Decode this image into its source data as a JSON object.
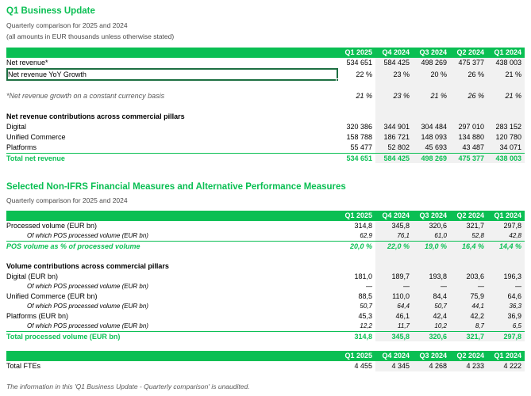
{
  "page": {
    "section1_title": "Q1 Business Update",
    "section1_subtitle": "Quarterly comparison for 2025 and 2024",
    "section1_note": "(all amounts in EUR thousands unless otherwise stated)",
    "section2_title": "Selected Non-IFRS Financial Measures and Alternative Performance Measures",
    "section2_subtitle": "Quarterly comparison for 2025 and 2024",
    "footnote": "The information in this 'Q1 Business Update - Quarterly comparison' is unaudited."
  },
  "colors": {
    "header_bar_green": "#0abf53",
    "accent_text_green": "#0abf53",
    "selection_border_green": "#1d6f42",
    "prior_quarter_column_shade": "#f1f1f1",
    "muted_text_gray": "#595959"
  },
  "columns": [
    "Q1 2025",
    "Q4 2024",
    "Q3 2024",
    "Q2 2024",
    "Q1 2024"
  ],
  "tables": [
    {
      "name": "net-revenue",
      "rows": [
        {
          "label": "Net revenue*",
          "style": "normal",
          "values": [
            "534 651",
            "584 425",
            "498 269",
            "475 377",
            "438 003"
          ]
        },
        {
          "label": "Net revenue YoY Growth",
          "style": "selected",
          "values": [
            "22 %",
            "23 %",
            "20 %",
            "26 %",
            "21 %"
          ]
        },
        {
          "style": "blank"
        },
        {
          "label": "*Net revenue growth on a constant currency basis",
          "style": "note-italic",
          "values": [
            "21 %",
            "23 %",
            "21 %",
            "26 %",
            "21 %"
          ]
        },
        {
          "style": "blank"
        },
        {
          "label": "Net revenue contributions across commercial pillars",
          "style": "bold",
          "values": []
        },
        {
          "label": "Digital",
          "style": "normal",
          "values": [
            "320 386",
            "344 901",
            "304 484",
            "297 010",
            "283 152"
          ]
        },
        {
          "label": "Unified Commerce",
          "style": "normal",
          "values": [
            "158 788",
            "186 721",
            "148 093",
            "134 880",
            "120 780"
          ]
        },
        {
          "label": "Platforms",
          "style": "normal",
          "values": [
            "55 477",
            "52 802",
            "45 693",
            "43 487",
            "34 071"
          ]
        },
        {
          "label": "Total net revenue",
          "style": "total",
          "values": [
            "534 651",
            "584 425",
            "498 269",
            "475 377",
            "438 003"
          ]
        }
      ]
    },
    {
      "name": "non-ifrs-measures",
      "rows": [
        {
          "label": "Processed volume (EUR bn)",
          "style": "normal",
          "values": [
            "314,8",
            "345,8",
            "320,6",
            "321,7",
            "297,8"
          ]
        },
        {
          "label": "Of which POS processed volume (EUR bn)",
          "style": "sub-italic",
          "values": [
            "62,9",
            "76,1",
            "61,0",
            "52,8",
            "42,8"
          ]
        },
        {
          "label": "POS volume as % of processed volume",
          "style": "total-italic",
          "values": [
            "20,0 %",
            "22,0 %",
            "19,0 %",
            "16,4 %",
            "14,4 %"
          ]
        },
        {
          "style": "blank"
        },
        {
          "label": "Volume contributions across commercial pillars",
          "style": "bold",
          "values": []
        },
        {
          "label": "Digital (EUR bn)",
          "style": "normal",
          "values": [
            "181,0",
            "189,7",
            "193,8",
            "203,6",
            "196,3"
          ]
        },
        {
          "label": "Of which POS processed volume (EUR bn)",
          "style": "sub-italic",
          "values": [
            "—",
            "—",
            "—",
            "—",
            "—"
          ]
        },
        {
          "label": "Unified Commerce (EUR bn)",
          "style": "normal",
          "values": [
            "88,5",
            "110,0",
            "84,4",
            "75,9",
            "64,6"
          ]
        },
        {
          "label": "Of which POS processed volume (EUR bn)",
          "style": "sub-italic",
          "values": [
            "50,7",
            "64,4",
            "50,7",
            "44,1",
            "36,3"
          ]
        },
        {
          "label": "Platforms (EUR bn)",
          "style": "normal",
          "values": [
            "45,3",
            "46,1",
            "42,4",
            "42,2",
            "36,9"
          ]
        },
        {
          "label": "Of which POS processed volume (EUR bn)",
          "style": "sub-italic",
          "values": [
            "12,2",
            "11,7",
            "10,2",
            "8,7",
            "6,5"
          ]
        },
        {
          "label": "Total processed volume (EUR bn)",
          "style": "total",
          "values": [
            "314,8",
            "345,8",
            "320,6",
            "321,7",
            "297,8"
          ]
        }
      ]
    },
    {
      "name": "ftes",
      "rows": [
        {
          "label": "Total FTEs",
          "style": "normal",
          "values": [
            "4 455",
            "4 345",
            "4 268",
            "4 233",
            "4 222"
          ]
        }
      ]
    }
  ]
}
